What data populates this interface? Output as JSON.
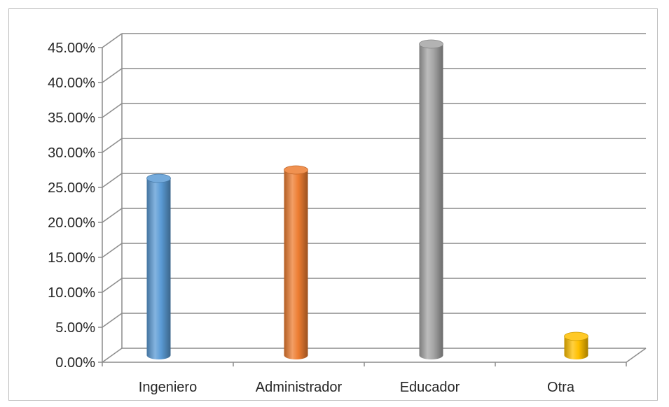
{
  "chart_data": {
    "type": "bar",
    "style": "3d-cylinder",
    "title": "",
    "xlabel": "",
    "ylabel": "",
    "categories": [
      "Ingeniero",
      "Administrador",
      "Educador",
      "Otra"
    ],
    "values": [
      25.3,
      26.5,
      44.5,
      2.7
    ],
    "value_unit": "percent",
    "ylim": [
      0,
      45
    ],
    "yticks": [
      0,
      5,
      10,
      15,
      20,
      25,
      30,
      35,
      40,
      45
    ],
    "ytick_labels": [
      "0.00%",
      "5.00%",
      "10.00%",
      "15.00%",
      "20.00%",
      "25.00%",
      "30.00%",
      "35.00%",
      "40.00%",
      "45.00%"
    ],
    "grid": true,
    "legend": "none",
    "colors": [
      "#5b9bd5",
      "#ed7d31",
      "#a5a5a5",
      "#ffc000"
    ]
  }
}
